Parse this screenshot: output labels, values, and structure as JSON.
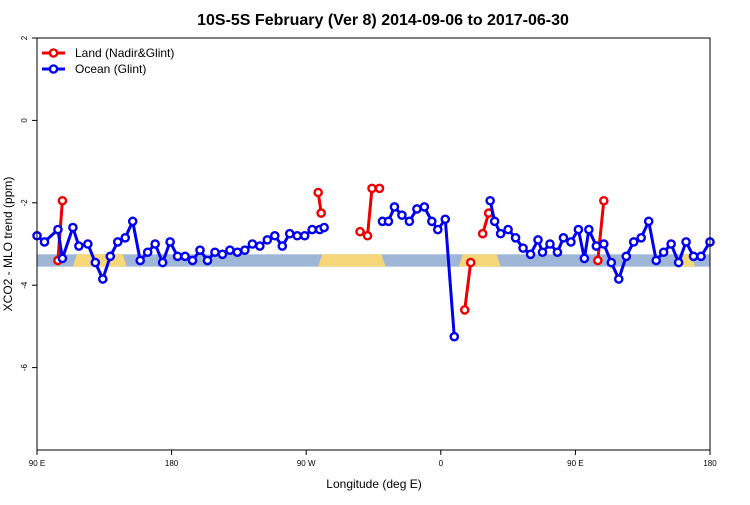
{
  "chart_data": {
    "type": "line",
    "title": "10S-5S February (Ver 8)   2014-09-06 to 2017-06-30",
    "xlabel": "Longitude (deg E)",
    "ylabel": "XCO2 - MLO trend (ppm)",
    "x_ticks": [
      {
        "value": 90,
        "label": "90 E"
      },
      {
        "value": 180,
        "label": "180"
      },
      {
        "value": 270,
        "label": "90 W"
      },
      {
        "value": 360,
        "label": "0"
      },
      {
        "value": 450,
        "label": "90 E"
      },
      {
        "value": 540,
        "label": "180"
      }
    ],
    "y_ticks": [
      {
        "value": 2,
        "label": "2"
      },
      {
        "value": 0,
        "label": "0"
      },
      {
        "value": -2,
        "label": "-2"
      },
      {
        "value": -4,
        "label": "-4"
      },
      {
        "value": -6,
        "label": "-6"
      }
    ],
    "xlim": [
      90,
      540
    ],
    "ylim": [
      -8,
      2
    ],
    "legend": {
      "position": "top-left",
      "entries": [
        {
          "label": "Land (Nadir&Glint)",
          "color": "#ee0000"
        },
        {
          "label": "Ocean (Glint)",
          "color": "#0000ee"
        }
      ]
    },
    "surface_band": {
      "y_range": [
        -3.55,
        -3.25
      ],
      "ocean_color": "#9fb6d6",
      "land_color": "#f5d77a",
      "land_segments": [
        [
          114,
          150
        ],
        [
          278,
          323
        ],
        [
          372,
          400
        ],
        [
          520,
          530
        ]
      ]
    },
    "series": [
      {
        "name": "Land (Nadir&Glint)",
        "color": "#ee0000",
        "segments": [
          [
            [
              104,
              -3.4
            ],
            [
              107,
              -1.95
            ]
          ],
          [
            [
              278,
              -1.75
            ],
            [
              280,
              -2.25
            ]
          ],
          [
            [
              306,
              -2.7
            ],
            [
              311,
              -2.8
            ],
            [
              314,
              -1.65
            ],
            [
              319,
              -1.65
            ]
          ],
          [
            [
              376,
              -4.6
            ],
            [
              380,
              -3.45
            ]
          ],
          [
            [
              388,
              -2.75
            ],
            [
              392,
              -2.25
            ]
          ],
          [
            [
              465,
              -3.4
            ],
            [
              469,
              -1.95
            ]
          ]
        ]
      },
      {
        "name": "Ocean (Glint)",
        "color": "#0000ee",
        "segments": [
          [
            [
              90,
              -2.8
            ],
            [
              95,
              -2.95
            ],
            [
              104,
              -2.65
            ],
            [
              107,
              -3.35
            ],
            [
              114,
              -2.6
            ],
            [
              118,
              -3.05
            ],
            [
              124,
              -3.0
            ],
            [
              129,
              -3.45
            ],
            [
              134,
              -3.85
            ],
            [
              139,
              -3.3
            ],
            [
              144,
              -2.95
            ],
            [
              149,
              -2.85
            ],
            [
              154,
              -2.45
            ],
            [
              159,
              -3.4
            ],
            [
              164,
              -3.2
            ],
            [
              169,
              -3.0
            ],
            [
              174,
              -3.45
            ],
            [
              179,
              -2.95
            ],
            [
              184,
              -3.3
            ],
            [
              189,
              -3.3
            ],
            [
              194,
              -3.4
            ],
            [
              199,
              -3.15
            ],
            [
              204,
              -3.4
            ],
            [
              209,
              -3.2
            ],
            [
              214,
              -3.25
            ],
            [
              219,
              -3.15
            ],
            [
              224,
              -3.2
            ],
            [
              229,
              -3.15
            ],
            [
              234,
              -3.0
            ],
            [
              239,
              -3.05
            ],
            [
              244,
              -2.9
            ],
            [
              249,
              -2.8
            ],
            [
              254,
              -3.05
            ],
            [
              259,
              -2.75
            ],
            [
              264,
              -2.8
            ],
            [
              269,
              -2.8
            ],
            [
              274,
              -2.65
            ],
            [
              279,
              -2.65
            ],
            [
              282,
              -2.6
            ]
          ],
          [
            [
              321,
              -2.45
            ],
            [
              325,
              -2.45
            ],
            [
              329,
              -2.1
            ],
            [
              334,
              -2.3
            ],
            [
              339,
              -2.45
            ],
            [
              344,
              -2.15
            ],
            [
              349,
              -2.1
            ],
            [
              354,
              -2.45
            ],
            [
              358,
              -2.65
            ],
            [
              363,
              -2.4
            ],
            [
              369,
              -5.25
            ]
          ],
          [
            [
              393,
              -1.95
            ],
            [
              396,
              -2.45
            ],
            [
              400,
              -2.75
            ],
            [
              405,
              -2.65
            ],
            [
              410,
              -2.85
            ],
            [
              415,
              -3.1
            ],
            [
              420,
              -3.25
            ],
            [
              425,
              -2.9
            ],
            [
              428,
              -3.2
            ],
            [
              433,
              -3.0
            ],
            [
              438,
              -3.2
            ],
            [
              442,
              -2.85
            ],
            [
              447,
              -2.95
            ],
            [
              452,
              -2.65
            ],
            [
              456,
              -3.35
            ],
            [
              459,
              -2.65
            ],
            [
              464,
              -3.05
            ],
            [
              469,
              -3.0
            ],
            [
              474,
              -3.45
            ],
            [
              479,
              -3.85
            ],
            [
              484,
              -3.3
            ],
            [
              489,
              -2.95
            ],
            [
              494,
              -2.85
            ],
            [
              499,
              -2.45
            ],
            [
              504,
              -3.4
            ],
            [
              509,
              -3.2
            ],
            [
              514,
              -3.0
            ],
            [
              519,
              -3.45
            ],
            [
              524,
              -2.95
            ],
            [
              529,
              -3.3
            ],
            [
              534,
              -3.3
            ],
            [
              540,
              -2.95
            ]
          ]
        ]
      }
    ]
  }
}
